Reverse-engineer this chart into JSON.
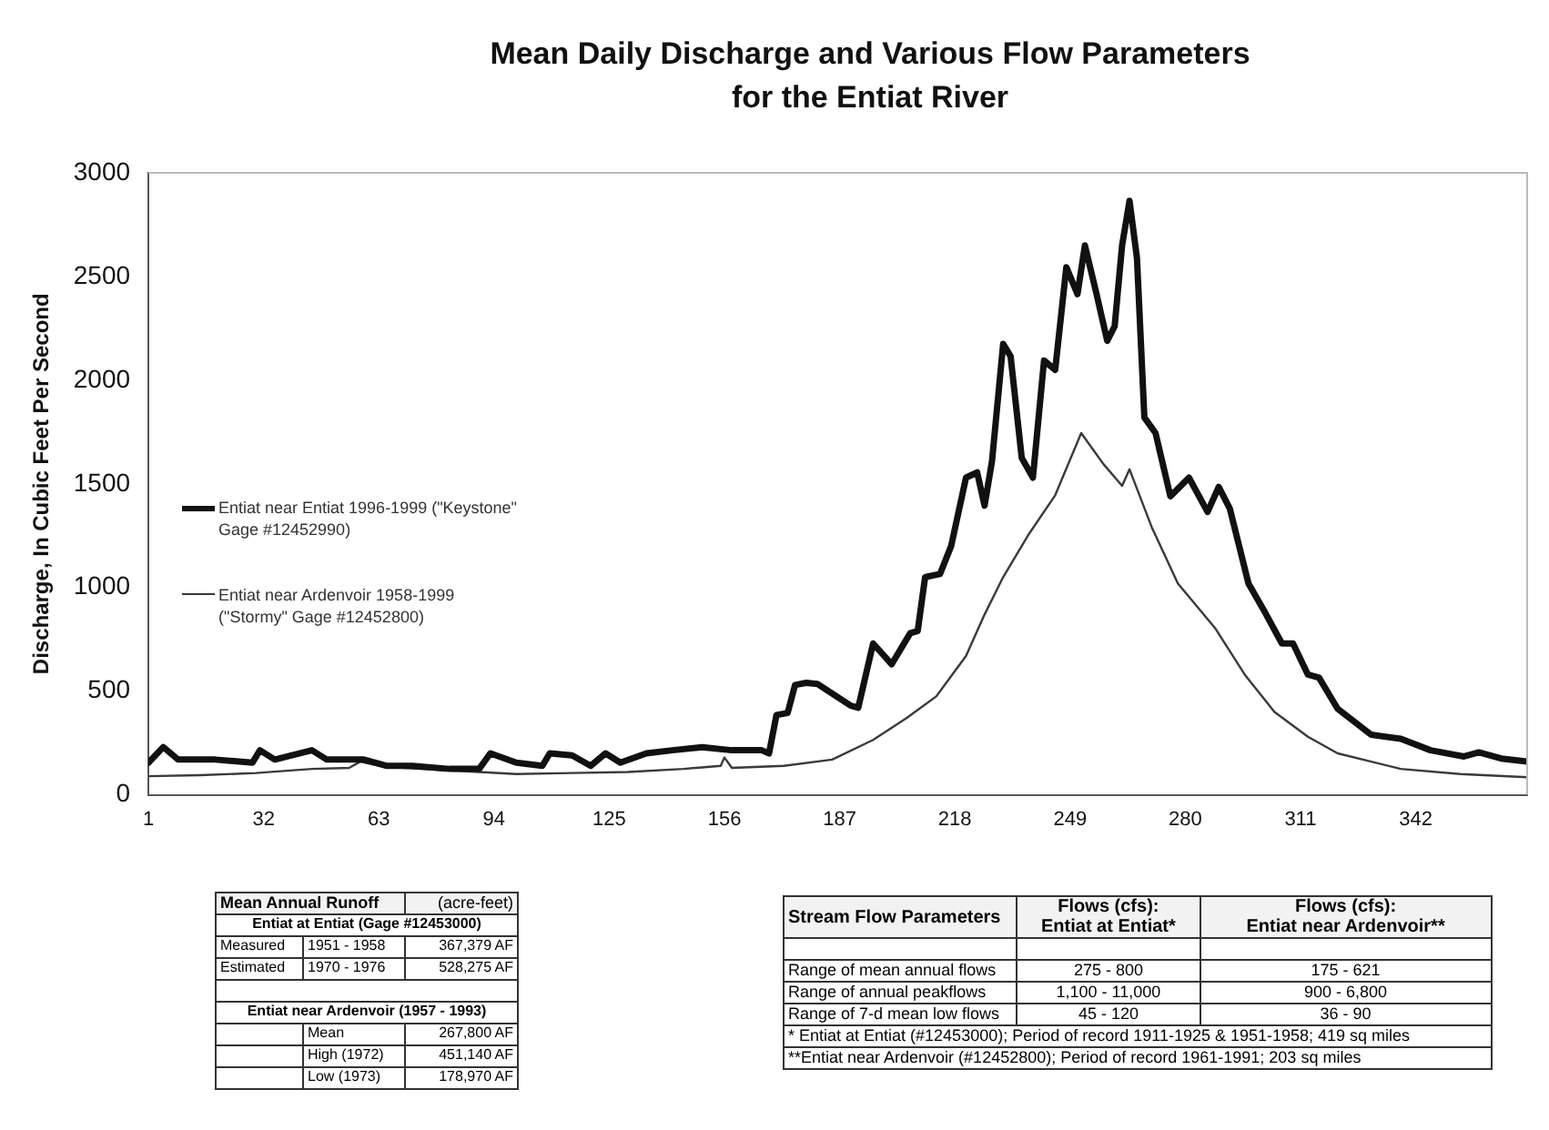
{
  "chart_data": {
    "type": "line",
    "title": "Mean Daily Discharge and Various Flow Parameters for the Entiat River",
    "ylabel": "Discharge, In Cubic Feet Per Second",
    "xlim": [
      1,
      372
    ],
    "xticks": [
      1,
      32,
      63,
      94,
      125,
      156,
      187,
      218,
      249,
      280,
      311,
      342
    ],
    "ylim": [
      0,
      3000
    ],
    "yticks": [
      0,
      500,
      1000,
      1500,
      2000,
      2500,
      3000
    ],
    "grid": false,
    "legend": "left",
    "marker": "none",
    "line_style": "solid",
    "series": [
      {
        "name": "Entiat near Entiat 1996-1999 (\"Keystone\" Gage #12452990)",
        "color": "#111111",
        "x": [
          1,
          5,
          9,
          19,
          29,
          31,
          35,
          45,
          49,
          59,
          65,
          72,
          82,
          90,
          93,
          100,
          107,
          109,
          115,
          120,
          124,
          128,
          135,
          142,
          150,
          158,
          166,
          168,
          170,
          173,
          175,
          178,
          181,
          190,
          192,
          196,
          201,
          206,
          208,
          210,
          214,
          217,
          221,
          224,
          226,
          228,
          231,
          233,
          236,
          239,
          242,
          245,
          248,
          251,
          253,
          256,
          259,
          261,
          263,
          265,
          267,
          269,
          272,
          276,
          281,
          286,
          289,
          292,
          297,
          301,
          306,
          309,
          313,
          316,
          321,
          330,
          338,
          346,
          355,
          359,
          365,
          372
        ],
        "values": [
          155,
          230,
          170,
          170,
          155,
          215,
          170,
          215,
          170,
          170,
          140,
          140,
          125,
          125,
          200,
          155,
          140,
          200,
          190,
          140,
          200,
          155,
          200,
          215,
          230,
          215,
          215,
          200,
          385,
          395,
          530,
          540,
          535,
          430,
          420,
          730,
          630,
          780,
          790,
          1050,
          1065,
          1200,
          1530,
          1555,
          1395,
          1610,
          2175,
          2115,
          1625,
          1530,
          2095,
          2050,
          2545,
          2415,
          2650,
          2425,
          2190,
          2260,
          2650,
          2865,
          2590,
          1820,
          1745,
          1440,
          1530,
          1365,
          1485,
          1380,
          1020,
          895,
          730,
          730,
          580,
          565,
          415,
          290,
          270,
          215,
          185,
          205,
          175,
          160
        ]
      },
      {
        "name": "Entiat near Ardenvoir 1958-1999 (\"Stormy\" Gage #12452800)",
        "color": "#3a3a3a",
        "x": [
          1,
          15,
          30,
          45,
          55,
          58,
          63,
          70,
          80,
          90,
          100,
          115,
          130,
          145,
          155,
          156,
          158,
          172,
          185,
          196,
          205,
          213,
          221,
          226,
          231,
          238,
          245,
          252,
          258,
          263,
          265,
          271,
          278,
          288,
          296,
          304,
          313,
          321,
          338,
          354,
          372
        ],
        "values": [
          90,
          95,
          105,
          125,
          130,
          160,
          140,
          130,
          120,
          110,
          100,
          105,
          110,
          125,
          140,
          180,
          130,
          140,
          170,
          265,
          370,
          475,
          670,
          870,
          1050,
          1260,
          1445,
          1745,
          1595,
          1490,
          1570,
          1290,
          1020,
          805,
          580,
          400,
          280,
          200,
          125,
          100,
          85
        ]
      }
    ],
    "annotations": [
      "Mean Annual Runoff",
      "(acre-feet)",
      "Entiat at Entiat (Gage #12453000)",
      "Measured",
      "1951 - 1958",
      "367,379 AF",
      "Estimated",
      "1970 - 1976",
      "528,275 AF",
      "Entiat near Ardenvoir (1957 - 1993)",
      "Mean",
      "267,800 AF",
      "High (1972)",
      "451,140 AF",
      "Low (1973)",
      "178,970 AF",
      "Stream Flow Parameters",
      "Flows (cfs):\nEntiat at Entiat*",
      "Flows (cfs):\nEntiat near Ardenvoir**",
      "Range of mean annual flows",
      "275 - 800",
      "175 - 621",
      "Range of annual peakflows",
      "1,100 - 11,000",
      "900 - 6,800",
      "Range of 7-d mean low flows",
      "45 - 120",
      "36 - 90",
      "* Entiat at Entiat (#12453000); Period of record 1911-1925 & 1951-1958; 419 sq miles",
      "**Entiat near Ardenvoir (#12452800);  Period of record 1961-1991; 203 sq miles"
    ]
  }
}
